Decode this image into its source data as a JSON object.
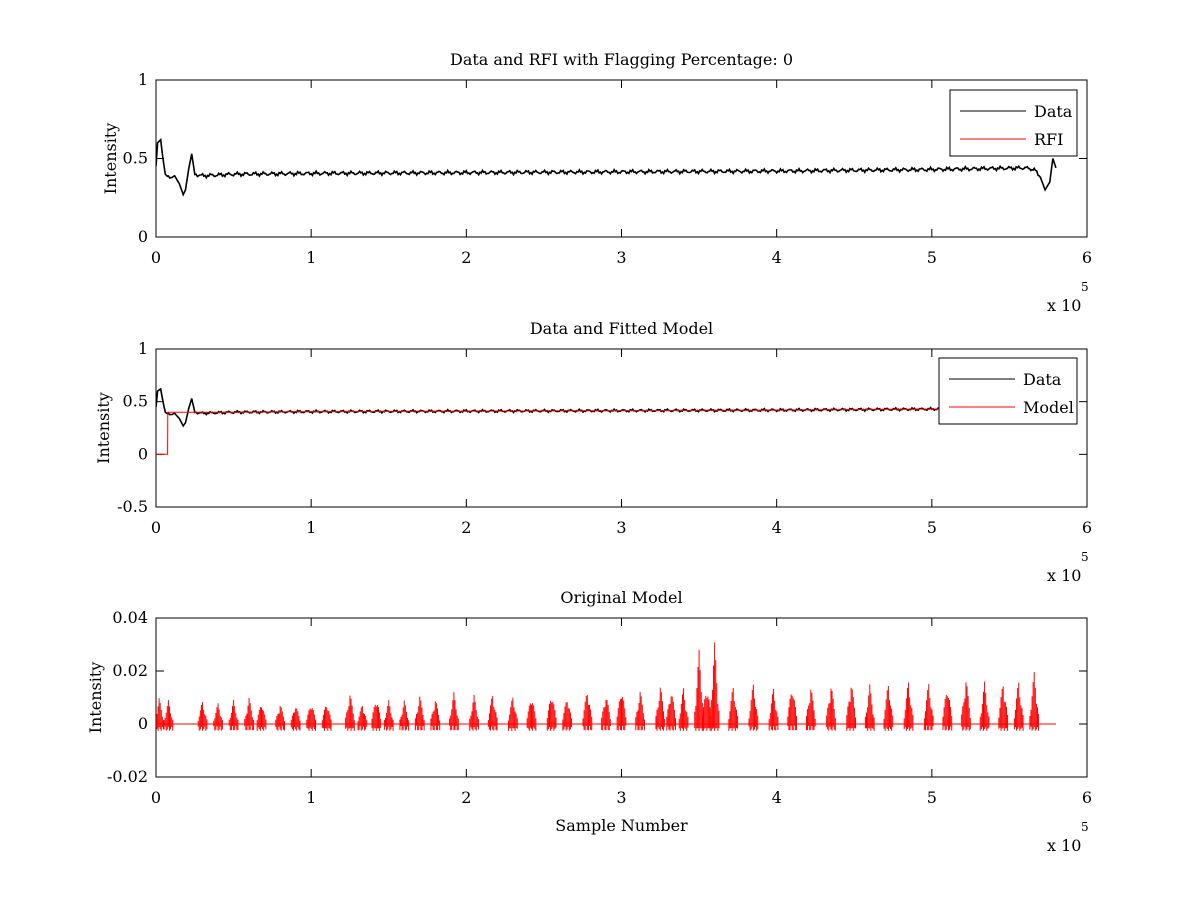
{
  "chart_data": [
    {
      "type": "line",
      "title": "Data and RFI with Flagging Percentage: 0",
      "xlabel": "",
      "ylabel": "Intensity",
      "xlim": [
        0,
        600000
      ],
      "ylim": [
        0,
        1
      ],
      "xticks": [
        0,
        1,
        2,
        3,
        4,
        5,
        6
      ],
      "xtick_labels": [
        "0",
        "1",
        "2",
        "3",
        "4",
        "5",
        "6"
      ],
      "yticks": [
        0,
        0.5,
        1
      ],
      "ytick_labels": [
        "0",
        "0.5",
        "1"
      ],
      "x_exponent_label": "x 10",
      "x_exponent": "5",
      "grid": false,
      "legend": {
        "placement": "top-right",
        "entries": [
          "Data",
          "RFI"
        ]
      },
      "series": [
        {
          "name": "Data",
          "color": "#000000",
          "x": [
            0,
            1000,
            3000,
            4500,
            6000,
            8000,
            12000,
            15000,
            17500,
            19000,
            21000,
            23000,
            25000,
            30000,
            50000,
            100000,
            200000,
            300000,
            400000,
            500000,
            560000,
            566000,
            570000,
            573000,
            576000,
            578000,
            580000
          ],
          "y": [
            0.45,
            0.6,
            0.62,
            0.5,
            0.4,
            0.38,
            0.39,
            0.34,
            0.27,
            0.3,
            0.43,
            0.53,
            0.4,
            0.39,
            0.4,
            0.405,
            0.41,
            0.415,
            0.42,
            0.43,
            0.44,
            0.43,
            0.38,
            0.3,
            0.35,
            0.5,
            0.44
          ]
        },
        {
          "name": "RFI",
          "color": "#ff0000",
          "x": [],
          "y": []
        }
      ]
    },
    {
      "type": "line",
      "title": "Data and Fitted Model",
      "xlabel": "",
      "ylabel": "Intensity",
      "xlim": [
        0,
        600000
      ],
      "ylim": [
        -0.5,
        1
      ],
      "xticks": [
        0,
        1,
        2,
        3,
        4,
        5,
        6
      ],
      "xtick_labels": [
        "0",
        "1",
        "2",
        "3",
        "4",
        "5",
        "6"
      ],
      "yticks": [
        -0.5,
        0,
        0.5,
        1
      ],
      "ytick_labels": [
        "-0.5",
        "0",
        "0.5",
        "1"
      ],
      "x_exponent_label": "x 10",
      "x_exponent": "5",
      "grid": false,
      "legend": {
        "placement": "top-right",
        "entries": [
          "Data",
          "Model"
        ]
      },
      "series": [
        {
          "name": "Data",
          "color": "#000000",
          "x": [
            0,
            1000,
            3000,
            4500,
            6000,
            8000,
            12000,
            15000,
            17500,
            19000,
            21000,
            23000,
            25000,
            30000,
            50000,
            100000,
            200000,
            300000,
            400000,
            500000,
            560000,
            580000
          ],
          "y": [
            0.45,
            0.6,
            0.62,
            0.5,
            0.4,
            0.38,
            0.39,
            0.34,
            0.27,
            0.3,
            0.43,
            0.53,
            0.4,
            0.39,
            0.4,
            0.405,
            0.41,
            0.415,
            0.42,
            0.43,
            0.44,
            0.44
          ]
        },
        {
          "name": "Model",
          "color": "#ff0000",
          "x": [
            0,
            7500,
            7600,
            12000,
            50000,
            100000,
            200000,
            300000,
            400000,
            500000,
            580000
          ],
          "y": [
            0,
            0,
            0.4,
            0.4,
            0.4,
            0.405,
            0.41,
            0.415,
            0.42,
            0.43,
            0.44
          ]
        }
      ]
    },
    {
      "type": "line",
      "title": "Original Model",
      "xlabel": "Sample Number",
      "ylabel": "Intensity",
      "xlim": [
        0,
        600000
      ],
      "ylim": [
        -0.02,
        0.04
      ],
      "xticks": [
        0,
        1,
        2,
        3,
        4,
        5,
        6
      ],
      "xtick_labels": [
        "0",
        "1",
        "2",
        "3",
        "4",
        "5",
        "6"
      ],
      "yticks": [
        -0.02,
        0,
        0.02,
        0.04
      ],
      "ytick_labels": [
        "-0.02",
        "0",
        "0.02",
        "0.04"
      ],
      "x_exponent_label": "x 10",
      "x_exponent": "5",
      "grid": false,
      "series": [
        {
          "color": "#ff0000",
          "spikes_x": [
            2000,
            8000,
            30000,
            40000,
            50000,
            60000,
            68000,
            80000,
            90000,
            100000,
            110000,
            125000,
            133000,
            142000,
            150000,
            160000,
            170000,
            180000,
            192000,
            205000,
            217000,
            230000,
            242000,
            255000,
            265000,
            278000,
            290000,
            300000,
            312000,
            325000,
            332000,
            340000,
            350000,
            355000,
            360000,
            372000,
            385000,
            398000,
            410000,
            422000,
            435000,
            448000,
            460000,
            472000,
            485000,
            498000,
            510000,
            522000,
            534000,
            546000,
            556000,
            566000
          ],
          "spikes_y": [
            0.01,
            0.009,
            0.009,
            0.008,
            0.009,
            0.01,
            0.009,
            0.008,
            0.008,
            0.009,
            0.009,
            0.012,
            0.008,
            0.011,
            0.009,
            0.009,
            0.011,
            0.01,
            0.012,
            0.011,
            0.012,
            0.011,
            0.012,
            0.013,
            0.011,
            0.014,
            0.012,
            0.015,
            0.013,
            0.015,
            0.014,
            0.014,
            0.028,
            0.016,
            0.031,
            0.015,
            0.016,
            0.014,
            0.016,
            0.015,
            0.016,
            0.017,
            0.015,
            0.016,
            0.017,
            0.016,
            0.016,
            0.018,
            0.016,
            0.017,
            0.017,
            0.02
          ]
        }
      ]
    }
  ]
}
